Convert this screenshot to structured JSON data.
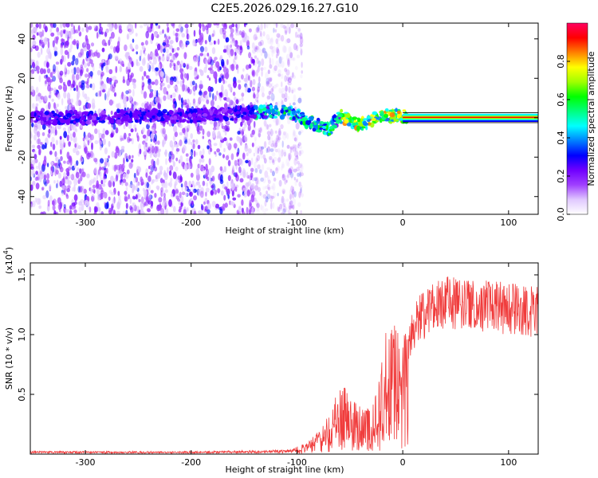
{
  "figure_title": "C2E5.2026.029.16.27.G10",
  "chart_data": [
    {
      "type": "heatmap",
      "title": "C2E5.2026.029.16.27.G10",
      "xlabel": "Height of straight line (km)",
      "ylabel": "Frequency (Hz)",
      "xlim": [
        -352,
        128
      ],
      "ylim": [
        -49,
        48
      ],
      "xticks": [
        -300,
        -200,
        -100,
        0,
        100
      ],
      "yticks": [
        -40,
        -20,
        0,
        20,
        40
      ],
      "colorbar": {
        "label": "Normalized spectral amplitude",
        "range": [
          0,
          1
        ],
        "ticks": [
          0.0,
          0.2,
          0.4,
          0.6,
          0.8
        ],
        "colors": [
          "#ffffff",
          "#e0c8ff",
          "#a040ff",
          "#7000ff",
          "#0000ff",
          "#0080ff",
          "#00ffff",
          "#00ff80",
          "#00ff00",
          "#a0ff00",
          "#ffff00",
          "#ff8000",
          "#ff0000",
          "#ff0060"
        ]
      },
      "ridge": [
        {
          "x": -350,
          "f": 0
        },
        {
          "x": -300,
          "f": 0
        },
        {
          "x": -250,
          "f": 1
        },
        {
          "x": -200,
          "f": 1
        },
        {
          "x": -160,
          "f": 2
        },
        {
          "x": -130,
          "f": 3
        },
        {
          "x": -110,
          "f": 3
        },
        {
          "x": -100,
          "f": 1
        },
        {
          "x": -90,
          "f": -2
        },
        {
          "x": -80,
          "f": -4
        },
        {
          "x": -70,
          "f": -6
        },
        {
          "x": -60,
          "f": 1
        },
        {
          "x": -50,
          "f": -1
        },
        {
          "x": -40,
          "f": -4
        },
        {
          "x": -30,
          "f": -1
        },
        {
          "x": -20,
          "f": 1
        },
        {
          "x": -10,
          "f": 1
        },
        {
          "x": 0,
          "f": 1
        },
        {
          "x": 128,
          "f": 0
        }
      ],
      "scatter_extent_x": [
        -352,
        -95
      ]
    },
    {
      "type": "line",
      "title": "",
      "xlabel": "Height of straight line (km)",
      "ylabel": "SNR (10 * v/v)",
      "y_multiplier": "(x10",
      "y_multiplier_exp": "4",
      "y_multiplier_close": ")",
      "xlim": [
        -352,
        128
      ],
      "ylim": [
        0,
        1.6
      ],
      "xticks": [
        -300,
        -200,
        -100,
        0,
        100
      ],
      "yticks": [
        0.5,
        1.0,
        1.5
      ],
      "ytick_labels": [
        "0.5",
        "1.0",
        "1.5"
      ],
      "line_color": "#f03c3c",
      "envelope": [
        {
          "x": -352,
          "y": 0.02
        },
        {
          "x": -200,
          "y": 0.02
        },
        {
          "x": -110,
          "y": 0.03
        },
        {
          "x": -90,
          "y": 0.08
        },
        {
          "x": -75,
          "y": 0.2
        },
        {
          "x": -65,
          "y": 0.38
        },
        {
          "x": -55,
          "y": 0.55
        },
        {
          "x": -50,
          "y": 0.42
        },
        {
          "x": -40,
          "y": 0.35
        },
        {
          "x": -30,
          "y": 0.3
        },
        {
          "x": -22,
          "y": 0.55
        },
        {
          "x": -15,
          "y": 0.95
        },
        {
          "x": -10,
          "y": 1.0
        },
        {
          "x": -5,
          "y": 0.85
        },
        {
          "x": 0,
          "y": 0.8
        },
        {
          "x": 5,
          "y": 0.95
        },
        {
          "x": 15,
          "y": 1.15
        },
        {
          "x": 30,
          "y": 1.3
        },
        {
          "x": 50,
          "y": 1.3
        },
        {
          "x": 80,
          "y": 1.27
        },
        {
          "x": 100,
          "y": 1.25
        },
        {
          "x": 128,
          "y": 1.22
        }
      ]
    }
  ]
}
